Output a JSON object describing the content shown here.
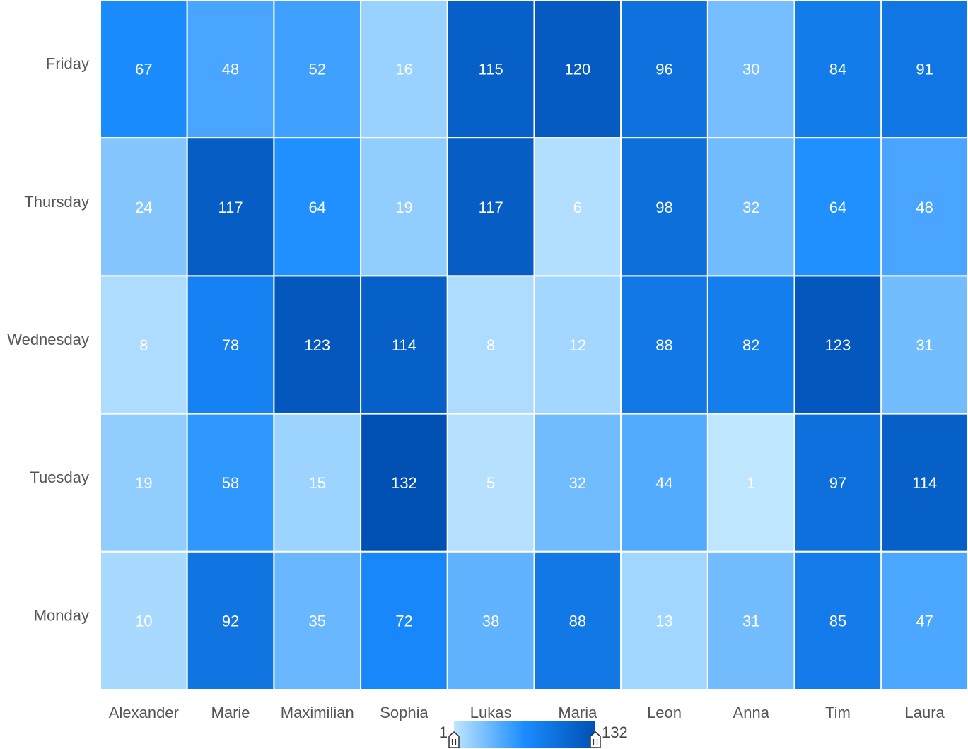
{
  "chart_data": {
    "type": "heatmap",
    "x_categories": [
      "Alexander",
      "Marie",
      "Maximilian",
      "Sophia",
      "Lukas",
      "Maria",
      "Leon",
      "Anna",
      "Tim",
      "Laura"
    ],
    "y_categories": [
      "Friday",
      "Thursday",
      "Wednesday",
      "Tuesday",
      "Monday"
    ],
    "values": [
      [
        67,
        48,
        52,
        16,
        115,
        120,
        96,
        30,
        84,
        91
      ],
      [
        24,
        117,
        64,
        19,
        117,
        6,
        98,
        32,
        64,
        48
      ],
      [
        8,
        78,
        123,
        114,
        8,
        12,
        88,
        82,
        123,
        31
      ],
      [
        19,
        58,
        15,
        132,
        5,
        32,
        44,
        1,
        97,
        114
      ],
      [
        10,
        92,
        35,
        72,
        38,
        88,
        13,
        31,
        85,
        47
      ]
    ],
    "value_range": [
      1,
      132
    ],
    "color_scale": [
      "#bfe6ff",
      "#1a8cff",
      "#0050b3"
    ],
    "visual_map": {
      "min_label": "1",
      "max_label": "132",
      "orientation": "horizontal",
      "placement": "bottom-center"
    },
    "title": "",
    "xlabel": "",
    "ylabel": ""
  }
}
